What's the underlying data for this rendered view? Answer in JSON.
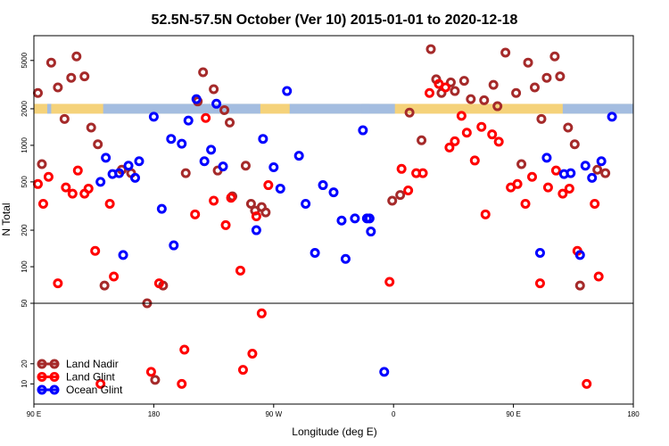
{
  "chart_data": {
    "type": "scatter",
    "title": "52.5N-57.5N October (Ver 10)   2015-01-01 to 2020-12-18",
    "xlabel": "Longitude (deg E)",
    "ylabel": "N Total",
    "x_ticks": [
      {
        "value": 90,
        "label": "90 E"
      },
      {
        "value": 180,
        "label": "180"
      },
      {
        "value": 270,
        "label": "90 W"
      },
      {
        "value": 360,
        "label": "0"
      },
      {
        "value": 450,
        "label": "90 E"
      },
      {
        "value": 540,
        "label": "180"
      }
    ],
    "xlim": [
      90,
      540
    ],
    "upper_panel": {
      "scale": "log",
      "ylim": [
        50,
        8000
      ],
      "ticks": [
        50,
        100,
        200,
        500,
        1000,
        2000,
        5000
      ]
    },
    "lower_panel": {
      "scale": "linear",
      "ylim": [
        0,
        50
      ],
      "ticks": [
        10,
        20
      ]
    },
    "land_band": {
      "value": 2000,
      "land_color": "#f5d27a",
      "ocean_color": "#a4bde0"
    },
    "legend_position": "bottom-left",
    "series": [
      {
        "name": "Land Nadir",
        "color": "#a52a2a",
        "points": [
          [
            93,
            2700
          ],
          [
            96,
            700
          ],
          [
            103,
            4800
          ],
          [
            108,
            3000
          ],
          [
            113,
            1650
          ],
          [
            118,
            3600
          ],
          [
            122,
            5400
          ],
          [
            128,
            3700
          ],
          [
            133,
            1400
          ],
          [
            138,
            1020
          ],
          [
            143,
            70
          ],
          [
            156,
            630
          ],
          [
            163,
            590
          ],
          [
            175,
            50
          ],
          [
            181,
            12
          ],
          [
            187,
            70
          ],
          [
            204,
            590
          ],
          [
            213,
            2300
          ],
          [
            217,
            4000
          ],
          [
            225,
            2900
          ],
          [
            228,
            620
          ],
          [
            233,
            1950
          ],
          [
            237,
            1540
          ],
          [
            239,
            380
          ],
          [
            249,
            680
          ],
          [
            253,
            330
          ],
          [
            256,
            290
          ],
          [
            261,
            310
          ],
          [
            264,
            280
          ],
          [
            359,
            350
          ],
          [
            365,
            390
          ],
          [
            372,
            1860
          ],
          [
            381,
            1100
          ],
          [
            388,
            6200
          ],
          [
            392,
            3500
          ],
          [
            396,
            2700
          ],
          [
            403,
            3300
          ],
          [
            406,
            2800
          ],
          [
            413,
            3400
          ],
          [
            418,
            2400
          ],
          [
            428,
            2350
          ],
          [
            435,
            3150
          ],
          [
            438,
            2100
          ],
          [
            444,
            5800
          ],
          [
            452,
            2700
          ],
          [
            456,
            700
          ],
          [
            461,
            4800
          ],
          [
            466,
            3000
          ],
          [
            471,
            1650
          ],
          [
            475,
            3600
          ],
          [
            481,
            5400
          ],
          [
            485,
            3700
          ],
          [
            491,
            1400
          ],
          [
            496,
            1020
          ],
          [
            500,
            70
          ],
          [
            513,
            630
          ],
          [
            519,
            590
          ]
        ]
      },
      {
        "name": "Land Glint",
        "color": "#ff0000",
        "points": [
          [
            93,
            480
          ],
          [
            97,
            330
          ],
          [
            101,
            550
          ],
          [
            108,
            73
          ],
          [
            114,
            450
          ],
          [
            119,
            400
          ],
          [
            123,
            620
          ],
          [
            128,
            400
          ],
          [
            131,
            440
          ],
          [
            136,
            135
          ],
          [
            140,
            10
          ],
          [
            147,
            330
          ],
          [
            150,
            83
          ],
          [
            178,
            16
          ],
          [
            184,
            73
          ],
          [
            201,
            10
          ],
          [
            203,
            27
          ],
          [
            211,
            270
          ],
          [
            219,
            1680
          ],
          [
            225,
            350
          ],
          [
            234,
            220
          ],
          [
            238,
            370
          ],
          [
            247,
            17
          ],
          [
            245,
            93
          ],
          [
            254,
            25
          ],
          [
            257,
            260
          ],
          [
            261,
            45
          ],
          [
            266,
            470
          ],
          [
            357,
            75
          ],
          [
            366,
            640
          ],
          [
            371,
            425
          ],
          [
            377,
            590
          ],
          [
            382,
            590
          ],
          [
            387,
            2700
          ],
          [
            394,
            3200
          ],
          [
            399,
            3000
          ],
          [
            402,
            960
          ],
          [
            406,
            1080
          ],
          [
            411,
            1750
          ],
          [
            415,
            1270
          ],
          [
            421,
            750
          ],
          [
            426,
            1420
          ],
          [
            429,
            270
          ],
          [
            434,
            1230
          ],
          [
            439,
            1070
          ],
          [
            448,
            450
          ],
          [
            453,
            480
          ],
          [
            459,
            330
          ],
          [
            464,
            550
          ],
          [
            470,
            73
          ],
          [
            476,
            450
          ],
          [
            482,
            620
          ],
          [
            487,
            400
          ],
          [
            492,
            440
          ],
          [
            498,
            135
          ],
          [
            505,
            10
          ],
          [
            511,
            330
          ],
          [
            514,
            83
          ]
        ]
      },
      {
        "name": "Ocean Glint",
        "color": "#0000ff",
        "points": [
          [
            140,
            500
          ],
          [
            144,
            790
          ],
          [
            149,
            580
          ],
          [
            154,
            590
          ],
          [
            157,
            125
          ],
          [
            161,
            680
          ],
          [
            166,
            540
          ],
          [
            169,
            740
          ],
          [
            180,
            1720
          ],
          [
            186,
            300
          ],
          [
            193,
            1130
          ],
          [
            195,
            150
          ],
          [
            201,
            1030
          ],
          [
            206,
            1600
          ],
          [
            212,
            2400
          ],
          [
            218,
            740
          ],
          [
            223,
            920
          ],
          [
            227,
            2200
          ],
          [
            232,
            670
          ],
          [
            257,
            200
          ],
          [
            262,
            1130
          ],
          [
            270,
            660
          ],
          [
            275,
            440
          ],
          [
            280,
            2800
          ],
          [
            289,
            820
          ],
          [
            294,
            330
          ],
          [
            301,
            130
          ],
          [
            307,
            470
          ],
          [
            315,
            410
          ],
          [
            321,
            240
          ],
          [
            324,
            116
          ],
          [
            331,
            250
          ],
          [
            337,
            1330
          ],
          [
            340,
            250
          ],
          [
            342,
            250
          ],
          [
            343,
            195
          ],
          [
            353,
            16
          ],
          [
            470,
            130
          ],
          [
            475,
            790
          ],
          [
            488,
            580
          ],
          [
            493,
            590
          ],
          [
            500,
            125
          ],
          [
            504,
            680
          ],
          [
            509,
            540
          ],
          [
            516,
            740
          ],
          [
            524,
            1720
          ]
        ]
      }
    ]
  }
}
